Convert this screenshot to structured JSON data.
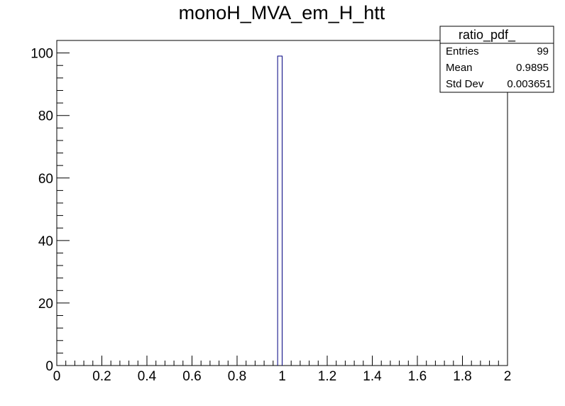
{
  "chart_data": {
    "type": "bar",
    "title": "monoH_MVA_em_H_htt",
    "xlabel": "",
    "ylabel": "",
    "xlim": [
      0,
      2
    ],
    "ylim": [
      0,
      104
    ],
    "x_ticks": [
      "0",
      "0.2",
      "0.4",
      "0.6",
      "0.8",
      "1",
      "1.2",
      "1.4",
      "1.6",
      "1.8",
      "2"
    ],
    "x_tick_values": [
      0,
      0.2,
      0.4,
      0.6,
      0.8,
      1.0,
      1.2,
      1.4,
      1.6,
      1.8,
      2.0
    ],
    "y_ticks": [
      "0",
      "20",
      "40",
      "60",
      "80",
      "100"
    ],
    "y_tick_values": [
      0,
      20,
      40,
      60,
      80,
      100
    ],
    "bins": [
      {
        "low": 0.98,
        "high": 1.0,
        "value": 99
      }
    ],
    "line_color": "#00007f",
    "stats_box": {
      "name": "ratio_pdf_",
      "rows": [
        {
          "label": "Entries",
          "value": "99"
        },
        {
          "label": "Mean",
          "value": "0.9895"
        },
        {
          "label": "Std Dev",
          "value": "0.003651"
        }
      ]
    }
  }
}
